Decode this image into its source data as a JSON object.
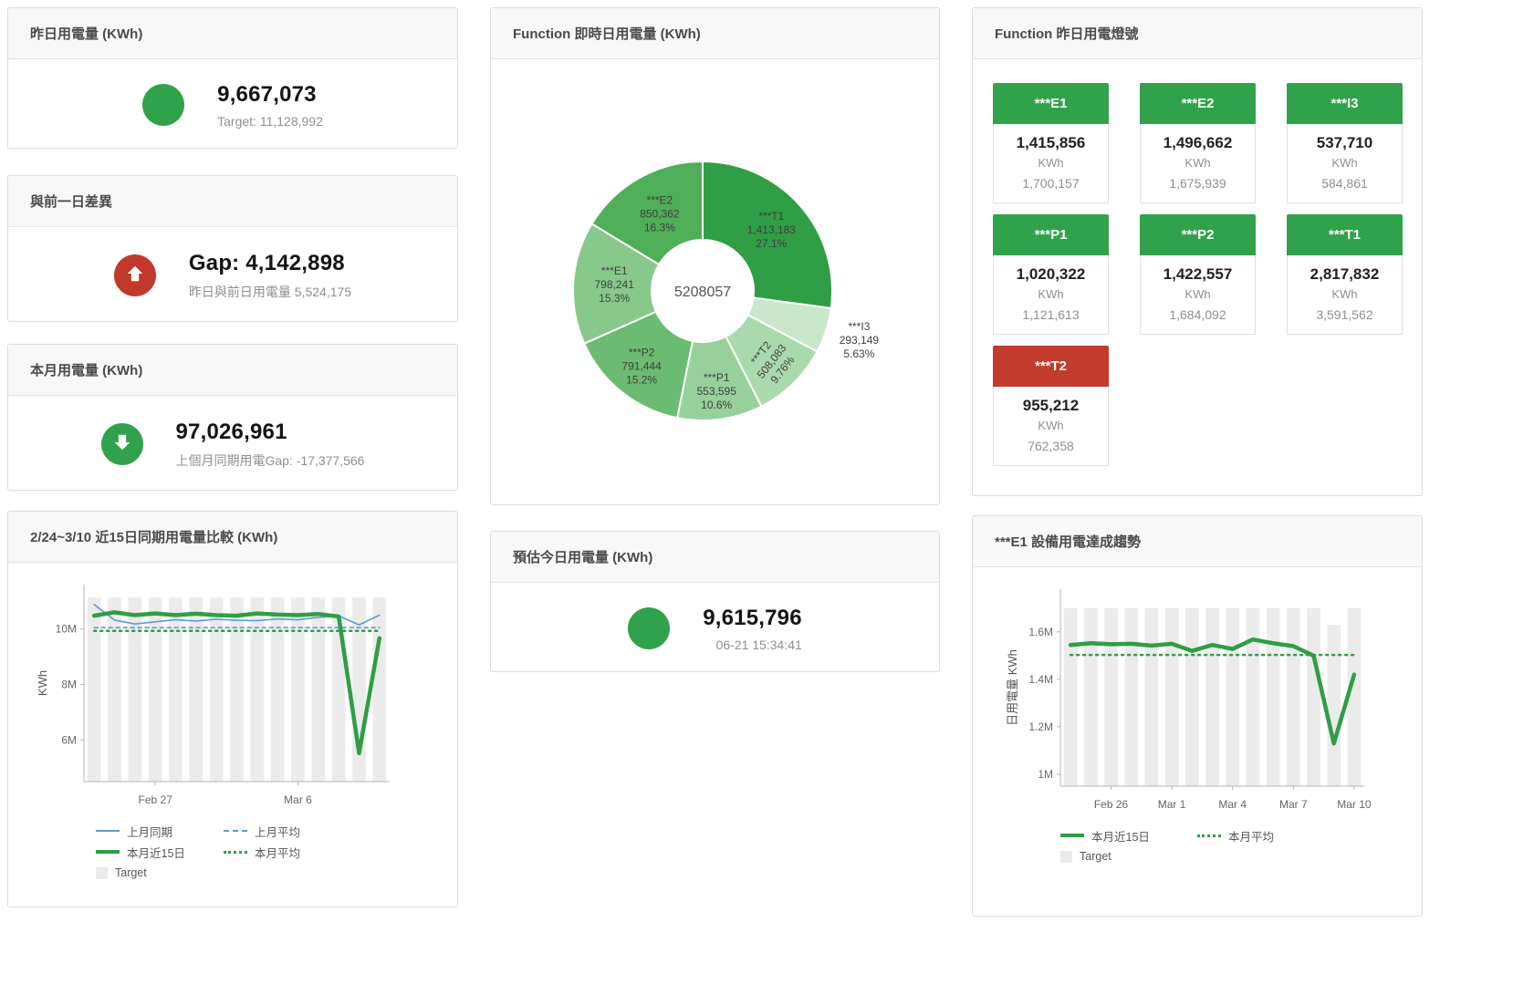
{
  "colors": {
    "green": "#31a24c",
    "red": "#c0392b",
    "blue": "#5b9bd5",
    "bar": "#ebebeb"
  },
  "cards": {
    "yesterday": {
      "title": "昨日用電量 (KWh)",
      "value": "9,667,073",
      "sub": "Target: 11,128,992"
    },
    "diff": {
      "title": "與前一日差異",
      "value": "Gap: 4,142,898",
      "sub": "昨日與前日用電量 5,524,175"
    },
    "month": {
      "title": "本月用電量 (KWh)",
      "value": "97,026,961",
      "sub": "上個月同期用電Gap: -17,377,566"
    },
    "realtime": {
      "title": "Function 即時日用電量 (KWh)"
    },
    "estimate": {
      "title": "預估今日用電量 (KWh)",
      "value": "9,615,796",
      "sub": "06-21 15:34:41"
    },
    "lights": {
      "title": "Function 昨日用電燈號",
      "unit": "KWh",
      "tiles": [
        {
          "name": "***E1",
          "value": "1,415,856",
          "target": "1,700,157",
          "color": "#31a24c"
        },
        {
          "name": "***E2",
          "value": "1,496,662",
          "target": "1,675,939",
          "color": "#31a24c"
        },
        {
          "name": "***I3",
          "value": "537,710",
          "target": "584,861",
          "color": "#31a24c"
        },
        {
          "name": "***P1",
          "value": "1,020,322",
          "target": "1,121,613",
          "color": "#31a24c"
        },
        {
          "name": "***P2",
          "value": "1,422,557",
          "target": "1,684,092",
          "color": "#31a24c"
        },
        {
          "name": "***T1",
          "value": "2,817,832",
          "target": "3,591,562",
          "color": "#31a24c"
        },
        {
          "name": "***T2",
          "value": "955,212",
          "target": "762,358",
          "color": "#c23b2c"
        }
      ]
    },
    "compare": {
      "title": "2/24~3/10 近15日同期用電量比較 (KWh)",
      "ylabel": "KWh",
      "legend": [
        "上月同期",
        "上月平均",
        "本月近15日",
        "本月平均",
        "Target"
      ]
    },
    "trend": {
      "title": "***E1 設備用電達成趨勢",
      "ylabel": "日用電量 KWh",
      "legend": [
        "本月近15日",
        "本月平均",
        "Target"
      ]
    }
  },
  "chart_data": [
    {
      "type": "pie",
      "title": "Function 即時日用電量 (KWh)",
      "center_total": "5208057",
      "slices": [
        {
          "name": "***T1",
          "value": 1413183,
          "value_label": "1,413,183",
          "pct": "27.1%",
          "color": "#2f9e44",
          "label_r": 100
        },
        {
          "name": "***I3",
          "value": 293149,
          "value_label": "293,149",
          "pct": "5.63%",
          "color": "#c9e7cb",
          "label_r": 180
        },
        {
          "name": "***T2",
          "value": 508083,
          "value_label": "508,083",
          "pct": "9.76%",
          "color": "#abd9ae",
          "label_r": 109,
          "label_rotate": -52
        },
        {
          "name": "***P1",
          "value": 553595,
          "value_label": "553,595",
          "pct": "10.6%",
          "color": "#97d09b",
          "label_r": 112
        },
        {
          "name": "***P2",
          "value": 791444,
          "value_label": "791,444",
          "pct": "15.2%",
          "color": "#6cbb72",
          "label_r": 107
        },
        {
          "name": "***E1",
          "value": 798241,
          "value_label": "798,241",
          "pct": "15.3%",
          "color": "#86c98b",
          "label_r": 97
        },
        {
          "name": "***E2",
          "value": 850362,
          "value_label": "850,362",
          "pct": "16.3%",
          "color": "#4fae58",
          "label_r": 96
        }
      ]
    },
    {
      "type": "line",
      "title": "2/24~3/10 近15日同期用電量比較 (KWh)",
      "xlabel": "",
      "ylabel": "KWh",
      "x": [
        "2/24",
        "2/25",
        "2/26",
        "2/27",
        "2/28",
        "3/1",
        "3/2",
        "3/3",
        "3/4",
        "3/5",
        "3/6",
        "3/7",
        "3/8",
        "3/9",
        "3/10"
      ],
      "ylim": [
        4500000,
        11600000
      ],
      "yticks": [
        {
          "v": 6000000,
          "label": "6M"
        },
        {
          "v": 8000000,
          "label": "8M"
        },
        {
          "v": 10000000,
          "label": "10M"
        }
      ],
      "xticks": [
        {
          "i": 3,
          "label": "Feb 27"
        },
        {
          "i": 10,
          "label": "Mar 6"
        }
      ],
      "bars": {
        "name": "Target",
        "color": "#ebebeb",
        "const": 11128992
      },
      "series": [
        {
          "name": "上月同期",
          "color": "#5b9bd5",
          "width": 1.6,
          "values": [
            10880000,
            10320000,
            10180000,
            10260000,
            10330000,
            10290000,
            10350000,
            10310000,
            10300000,
            10360000,
            10330000,
            10420000,
            10470000,
            10150000,
            10500000
          ]
        },
        {
          "name": "上月平均",
          "color": "#5b9bd5",
          "width": 1.6,
          "dash": "4 4",
          "const": 10050000
        },
        {
          "name": "本月近15日",
          "color": "#2f9e44",
          "width": 4.5,
          "values": [
            10480000,
            10600000,
            10500000,
            10560000,
            10500000,
            10550000,
            10500000,
            10480000,
            10560000,
            10520000,
            10500000,
            10540000,
            10450000,
            5524175,
            9667073
          ]
        },
        {
          "name": "本月平均",
          "color": "#2f9e44",
          "width": 2.5,
          "dash": "2 5",
          "const": 9930000
        }
      ],
      "legend_position": "bottom"
    },
    {
      "type": "line",
      "title": "***E1 設備用電達成趨勢",
      "xlabel": "",
      "ylabel": "日用電量 KWh",
      "x": [
        "2/24",
        "2/25",
        "2/26",
        "2/27",
        "2/28",
        "3/1",
        "3/2",
        "3/3",
        "3/4",
        "3/5",
        "3/6",
        "3/7",
        "3/8",
        "3/9",
        "3/10"
      ],
      "ylim": [
        950000,
        1780000
      ],
      "yticks": [
        {
          "v": 1000000,
          "label": "1M"
        },
        {
          "v": 1200000,
          "label": "1.2M"
        },
        {
          "v": 1400000,
          "label": "1.4M"
        },
        {
          "v": 1600000,
          "label": "1.6M"
        }
      ],
      "xticks": [
        {
          "i": 2,
          "label": "Feb 26"
        },
        {
          "i": 5,
          "label": "Mar 1"
        },
        {
          "i": 8,
          "label": "Mar 4"
        },
        {
          "i": 11,
          "label": "Mar 7"
        },
        {
          "i": 14,
          "label": "Mar 10"
        }
      ],
      "bars": {
        "name": "Target",
        "color": "#ebebeb",
        "values": [
          1700157,
          1700157,
          1700157,
          1700157,
          1700157,
          1700157,
          1700157,
          1700157,
          1700157,
          1700157,
          1700157,
          1700157,
          1700157,
          1630000,
          1700157
        ]
      },
      "series": [
        {
          "name": "本月近15日",
          "color": "#2f9e44",
          "width": 4.5,
          "values": [
            1545000,
            1552000,
            1548000,
            1550000,
            1542000,
            1550000,
            1520000,
            1545000,
            1528000,
            1568000,
            1552000,
            1540000,
            1500000,
            1130000,
            1420000
          ]
        },
        {
          "name": "本月平均",
          "color": "#2f9e44",
          "width": 2.5,
          "dash": "2 5",
          "const": 1503000
        }
      ],
      "legend_position": "bottom"
    }
  ]
}
